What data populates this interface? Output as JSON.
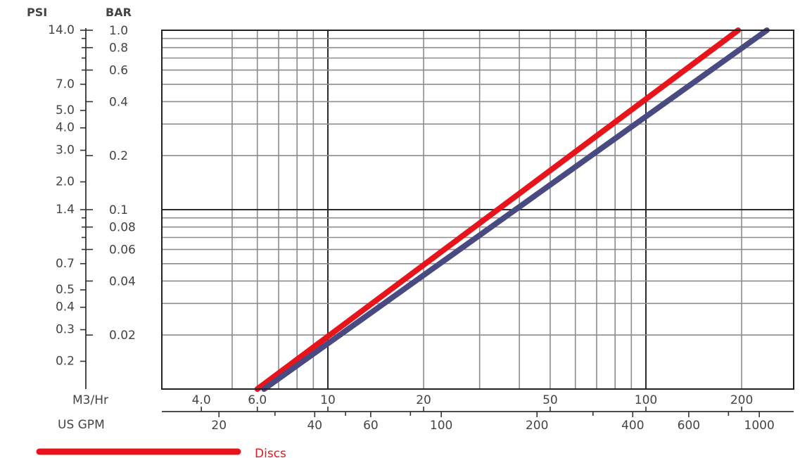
{
  "chart_data": {
    "type": "line",
    "title": "",
    "y_axes": {
      "psi": {
        "label": "PSI",
        "tick_labels": [
          "14.0",
          "7.0",
          "5.0",
          "4.0",
          "3.0",
          "2.0",
          "1.4",
          "0.7",
          "0.5",
          "0.4",
          "0.3",
          "0.2"
        ],
        "range": [
          0.14,
          14.0
        ],
        "scale": "log"
      },
      "bar": {
        "label": "BAR",
        "tick_labels": [
          "1.0",
          "0.8",
          "0.6",
          "0.4",
          "0.2",
          "0.1",
          "0.08",
          "0.06",
          "0.04",
          "0.02"
        ],
        "range": [
          0.01,
          1.0
        ],
        "scale": "log"
      }
    },
    "x_axes": {
      "m3hr": {
        "label": "M3/Hr",
        "tick_labels": [
          "4.0",
          "6.0",
          "10",
          "20",
          "50",
          "100",
          "200"
        ],
        "range": [
          4.0,
          250
        ],
        "scale": "log"
      },
      "usgpm": {
        "label": "US GPM",
        "tick_labels": [
          "20",
          "40",
          "60",
          "100",
          "200",
          "400",
          "600",
          "1000"
        ]
      }
    },
    "grid": true,
    "legend": {
      "position": "bottom-left",
      "entries": [
        "Discs"
      ]
    },
    "series": [
      {
        "name": "Discs",
        "color": "#e8141b",
        "x_m3hr": [
          6.0,
          195
        ],
        "y_bar": [
          0.01,
          1.0
        ]
      },
      {
        "color": "#4a4a82",
        "x_m3hr": [
          6.3,
          240
        ],
        "y_bar": [
          0.01,
          1.0
        ]
      }
    ]
  }
}
